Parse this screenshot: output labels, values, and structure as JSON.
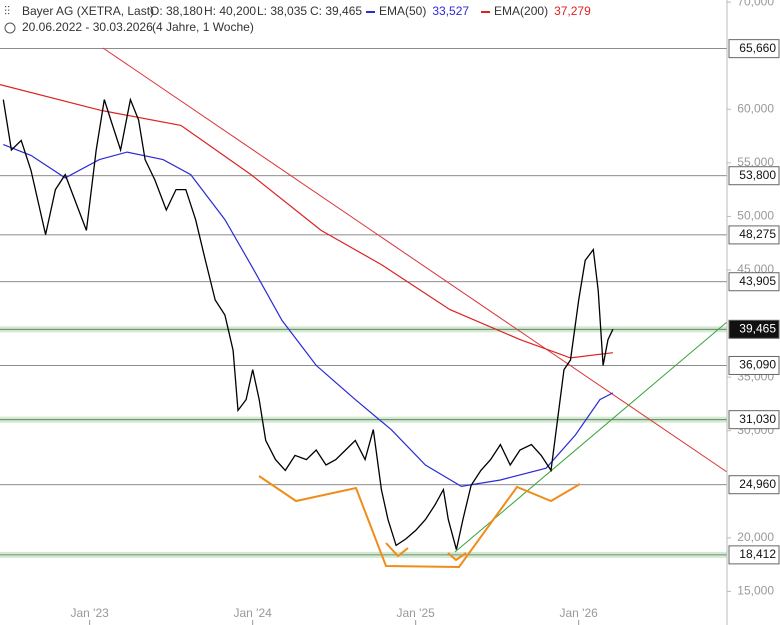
{
  "header": {
    "title": "Bayer AG (XETRA, Last)",
    "open": "O: 38,180",
    "high": "H: 40,200",
    "low": "L: 38,035",
    "close": "C: 39,465",
    "period": "20.06.2022 - 30.03.2026",
    "duration": "(4 Jahre, 1 Woche)"
  },
  "chart_data": {
    "type": "line",
    "x": [
      2022.47,
      2022.52,
      2022.58,
      2022.64,
      2022.73,
      2022.79,
      2022.85,
      2022.91,
      2022.98,
      2023.04,
      2023.09,
      2023.13,
      2023.19,
      2023.25,
      2023.3,
      2023.34,
      2023.4,
      2023.47,
      2023.53,
      2023.59,
      2023.65,
      2023.71,
      2023.77,
      2023.83,
      2023.88,
      2023.91,
      2023.96,
      2024.0,
      2024.04,
      2024.08,
      2024.14,
      2024.2,
      2024.26,
      2024.33,
      2024.39,
      2024.45,
      2024.51,
      2024.57,
      2024.63,
      2024.69,
      2024.74,
      2024.79,
      2024.83,
      2024.88,
      2024.94,
      2025.0,
      2025.06,
      2025.12,
      2025.17,
      2025.2,
      2025.25,
      2025.29,
      2025.34,
      2025.4,
      2025.46,
      2025.52,
      2025.58,
      2025.64,
      2025.71,
      2025.77,
      2025.83,
      2025.87,
      2025.91,
      2025.95,
      2026.0,
      2026.04,
      2026.09,
      2026.12,
      2026.15,
      2026.18,
      2026.21
    ],
    "series": [
      {
        "name": "Bayer AG",
        "color": "#000000",
        "values": [
          60.9,
          56.2,
          57.1,
          54.3,
          48.3,
          52.5,
          53.9,
          51.5,
          48.7,
          56.2,
          60.9,
          59.0,
          56.2,
          60.9,
          59.0,
          55.3,
          53.4,
          50.6,
          52.5,
          52.5,
          49.7,
          45.9,
          42.2,
          40.8,
          37.5,
          31.9,
          32.9,
          35.7,
          32.9,
          29.1,
          27.3,
          26.3,
          27.7,
          27.3,
          28.2,
          26.8,
          27.3,
          28.2,
          29.1,
          27.3,
          30.1,
          24.5,
          21.7,
          19.3,
          19.9,
          20.7,
          21.7,
          23.1,
          24.5,
          21.7,
          18.9,
          21.7,
          24.9,
          26.3,
          27.3,
          28.7,
          26.8,
          28.2,
          28.7,
          27.7,
          26.3,
          31.0,
          35.7,
          36.6,
          42.2,
          45.9,
          46.9,
          43.1,
          36.1,
          38.5,
          39.465
        ]
      }
    ],
    "overlays": [
      {
        "name": "EMA(50)",
        "value_label": "33,527",
        "color": "#2b2bd6",
        "x": [
          2022.47,
          2022.64,
          2022.85,
          2023.06,
          2023.23,
          2023.45,
          2023.62,
          2023.83,
          2024.0,
          2024.18,
          2024.39,
          2024.63,
          2024.85,
          2025.06,
          2025.28,
          2025.52,
          2025.8,
          2025.98,
          2026.13,
          2026.21
        ],
        "values": [
          56.7,
          55.7,
          53.6,
          55.3,
          56.0,
          55.3,
          53.9,
          49.7,
          45.2,
          40.3,
          36.1,
          32.9,
          30.1,
          26.8,
          24.8,
          25.4,
          26.5,
          29.6,
          32.9,
          33.527
        ]
      },
      {
        "name": "EMA(200)",
        "value_label": "37,279",
        "color": "#dd2222",
        "x": [
          2022.45,
          2023.07,
          2023.56,
          2023.99,
          2024.42,
          2024.79,
          2025.21,
          2025.64,
          2025.95,
          2026.21
        ],
        "values": [
          62.3,
          59.9,
          58.5,
          53.9,
          48.7,
          45.5,
          41.3,
          38.5,
          36.8,
          37.279
        ]
      }
    ],
    "levels": [
      {
        "value": 65.66,
        "label": "65,660"
      },
      {
        "value": 53.8,
        "label": "53,800"
      },
      {
        "value": 48.275,
        "label": "48,275"
      },
      {
        "value": 43.905,
        "label": "43,905"
      },
      {
        "value": 39.465,
        "label": "39,465",
        "zone": true,
        "current": true
      },
      {
        "value": 36.09,
        "label": "36,090"
      },
      {
        "value": 31.03,
        "label": "31,030",
        "zone": true
      },
      {
        "value": 24.96,
        "label": "24,960"
      },
      {
        "value": 18.412,
        "label": "18,412",
        "zone": true
      }
    ],
    "xlim": [
      2022.45,
      2026.91
    ],
    "xticks": [
      {
        "value": 2023,
        "label": "Jan '23"
      },
      {
        "value": 2024,
        "label": "Jan '24"
      },
      {
        "value": 2025,
        "label": "Jan '25"
      },
      {
        "value": 2026,
        "label": "Jan '26"
      }
    ],
    "ylim": [
      14.2,
      70.2
    ],
    "yticks": [
      {
        "value": 15,
        "label": "15,000"
      },
      {
        "value": 20,
        "label": "20,000"
      },
      {
        "value": 30,
        "label": "30,000"
      },
      {
        "value": 35,
        "label": "35,000"
      },
      {
        "value": 45,
        "label": "45,000"
      },
      {
        "value": 50,
        "label": "50,000"
      },
      {
        "value": 55,
        "label": "55,000"
      },
      {
        "value": 60,
        "label": "60,000"
      },
      {
        "value": 70,
        "label": "70,000"
      }
    ]
  }
}
